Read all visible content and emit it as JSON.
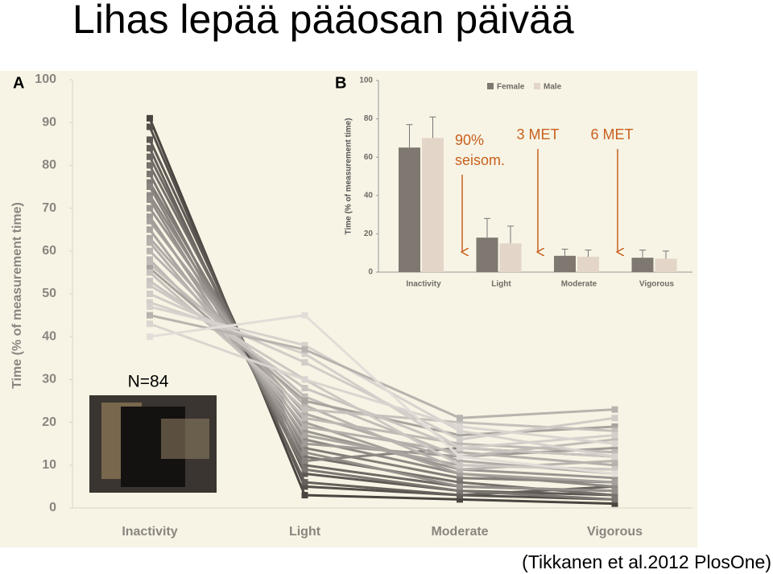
{
  "title": "Lihas lepää pääosan päivää",
  "sample_size": "N=84",
  "citation": "(Tikkanen et al.2012 PlosOne)",
  "annotations": [
    [
      "90%",
      "seisom."
    ],
    [
      "3 MET"
    ],
    [
      "6 MET"
    ]
  ],
  "chart_data": [
    {
      "type": "line",
      "panel_label": "A",
      "y_label": "Time (% of measurement time)",
      "categories": [
        "Inactivity",
        "Light",
        "Moderate",
        "Vigorous"
      ],
      "ylim": [
        0,
        100
      ],
      "yticks": [
        0,
        10,
        20,
        30,
        40,
        50,
        60,
        70,
        80,
        90,
        100
      ],
      "series": [
        {
          "color": "#4a4540",
          "values": [
            91,
            3,
            2,
            1
          ]
        },
        {
          "color": "#55504b",
          "values": [
            89,
            5,
            3,
            2
          ]
        },
        {
          "color": "#5d5853",
          "values": [
            86,
            8,
            4,
            3
          ]
        },
        {
          "color": "#65605b",
          "values": [
            84,
            6,
            3,
            5
          ]
        },
        {
          "color": "#6d6863",
          "values": [
            82,
            10,
            5,
            4
          ]
        },
        {
          "color": "#75706b",
          "values": [
            80,
            12,
            6,
            3
          ]
        },
        {
          "color": "#7b7671",
          "values": [
            78,
            9,
            4,
            2
          ]
        },
        {
          "color": "#827d78",
          "values": [
            76,
            14,
            7,
            6
          ]
        },
        {
          "color": "#88837e",
          "values": [
            75,
            11,
            14,
            12
          ]
        },
        {
          "color": "#8e8984",
          "values": [
            73,
            16,
            8,
            5
          ]
        },
        {
          "color": "#948f8a",
          "values": [
            72,
            13,
            5,
            4
          ]
        },
        {
          "color": "#9a9590",
          "values": [
            70,
            18,
            9,
            7
          ]
        },
        {
          "color": "#a09b96",
          "values": [
            68,
            15,
            12,
            14
          ]
        },
        {
          "color": "#a5a09b",
          "values": [
            67,
            20,
            8,
            6
          ]
        },
        {
          "color": "#aaa5a0",
          "values": [
            65,
            17,
            10,
            9
          ]
        },
        {
          "color": "#afaaa5",
          "values": [
            63,
            22,
            11,
            8
          ]
        },
        {
          "color": "#b4afaa",
          "values": [
            62,
            19,
            13,
            10
          ]
        },
        {
          "color": "#b9b4af",
          "values": [
            60,
            24,
            9,
            11
          ]
        },
        {
          "color": "#bdb8b3",
          "values": [
            58,
            21,
            15,
            13
          ]
        },
        {
          "color": "#c1bcb7",
          "values": [
            57,
            26,
            12,
            16
          ]
        },
        {
          "color": "#a8a39e",
          "values": [
            56,
            25,
            17,
            19
          ]
        },
        {
          "color": "#c5c0bb",
          "values": [
            55,
            23,
            20,
            18
          ]
        },
        {
          "color": "#c9c4bf",
          "values": [
            53,
            28,
            14,
            12
          ]
        },
        {
          "color": "#cdc8c3",
          "values": [
            52,
            30,
            10,
            9
          ]
        },
        {
          "color": "#d1ccc7",
          "values": [
            50,
            34,
            16,
            21
          ]
        },
        {
          "color": "#d4cfca",
          "values": [
            48,
            36,
            14,
            17
          ]
        },
        {
          "color": "#d7d2cd",
          "values": [
            47,
            38,
            18,
            12
          ]
        },
        {
          "color": "#b8b3ae",
          "values": [
            45,
            37,
            21,
            23
          ]
        },
        {
          "color": "#dad5d0",
          "values": [
            43,
            30,
            19,
            15
          ]
        },
        {
          "color": "#e2ddd8",
          "values": [
            40,
            45,
            12,
            8
          ]
        }
      ]
    },
    {
      "type": "bar",
      "panel_label": "B",
      "y_label": "Time (% of measurement time)",
      "categories": [
        "Inactivity",
        "Light",
        "Moderate",
        "Vigorous"
      ],
      "ylim": [
        0,
        100
      ],
      "yticks": [
        0,
        20,
        40,
        60,
        80,
        100
      ],
      "series": [
        {
          "name": "Female",
          "color": "#7f7870",
          "values": [
            65,
            18,
            8.5,
            7.5
          ],
          "errors": [
            12,
            10,
            3.5,
            4
          ]
        },
        {
          "name": "Male",
          "color": "#e3d5c8",
          "values": [
            70,
            15,
            8,
            7
          ],
          "errors": [
            11,
            9,
            3.5,
            4
          ]
        }
      ]
    }
  ]
}
